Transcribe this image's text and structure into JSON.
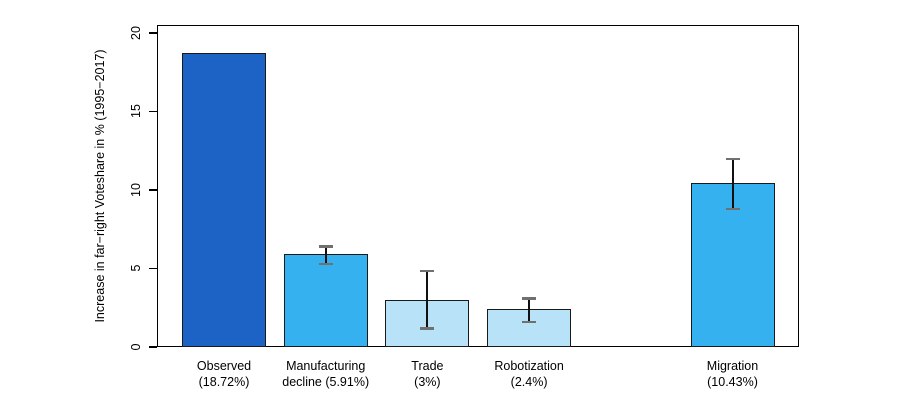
{
  "figure": {
    "background": "#ffffff"
  },
  "chart_data": {
    "type": "bar",
    "title": "",
    "xlabel": "",
    "ylabel": "Increase in far−right Voteshare in % (1995−2017)",
    "ylim": [
      0,
      20.5
    ],
    "grid": false,
    "legend": "none",
    "categories": [
      "Observed",
      "Manufacturing decline",
      "Trade",
      "Robotization",
      "Migration"
    ],
    "values": [
      18.72,
      5.91,
      3,
      2.4,
      10.43
    ],
    "y_ticks": [
      "0",
      "5",
      "10",
      "15",
      "20"
    ],
    "y_tick_values": [
      0,
      5,
      10,
      15,
      20
    ],
    "bars": [
      {
        "name": "observed",
        "label_lines": [
          "Observed",
          "(18.72%)"
        ],
        "value": 18.72,
        "slot": 0,
        "fill": "#1d63c6",
        "ci": null
      },
      {
        "name": "manufacturing-decline",
        "label_lines": [
          "Manufacturing",
          "decline (5.91%)"
        ],
        "value": 5.91,
        "slot": 1,
        "fill": "#36b1f0",
        "ci": [
          5.3,
          6.4
        ]
      },
      {
        "name": "trade",
        "label_lines": [
          "Trade",
          "(3%)"
        ],
        "value": 3,
        "slot": 2,
        "fill": "#b8e2f7",
        "ci": [
          1.2,
          4.85
        ]
      },
      {
        "name": "robotization",
        "label_lines": [
          "Robotization",
          "(2.4%)"
        ],
        "value": 2.4,
        "slot": 3,
        "fill": "#b8e2f7",
        "ci": [
          1.6,
          3.1
        ]
      },
      {
        "name": "migration",
        "label_lines": [
          "Migration",
          "(10.43%)"
        ],
        "value": 10.43,
        "slot": 5,
        "fill": "#36b1f0",
        "ci": [
          8.8,
          12.0
        ]
      }
    ],
    "colors": {
      "bar_dark_blue": "#1d63c6",
      "bar_azure": "#36b1f0",
      "bar_pale_blue": "#b8e2f7",
      "bar_border": "#1a1a1a",
      "error_bar": "#111111",
      "error_bar_cap": "#707070",
      "axis": "#000000"
    }
  }
}
